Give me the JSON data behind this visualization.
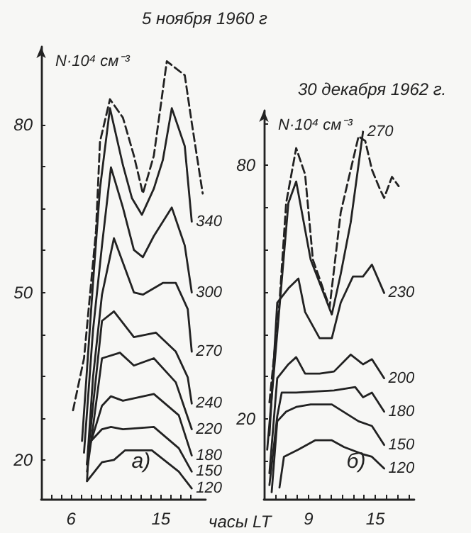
{
  "chart_data": [
    {
      "type": "line",
      "title": "5 ноября 1960 г",
      "ylabel": "N·10⁴ см⁻³",
      "xlabel": "часы LT",
      "annotations": [
        "а)"
      ],
      "marker": "none",
      "xlim": [
        3,
        19.5
      ],
      "ylim": [
        13,
        94
      ],
      "xticks": [
        {
          "value": 4,
          "label": null
        },
        {
          "value": 5,
          "label": null
        },
        6,
        {
          "value": 7,
          "label": null
        },
        {
          "value": 8,
          "label": null
        },
        {
          "value": 9,
          "label": null
        },
        {
          "value": 10,
          "label": null
        },
        {
          "value": 11,
          "label": null
        },
        {
          "value": 12,
          "label": null
        },
        {
          "value": 13,
          "label": null
        },
        {
          "value": 14,
          "label": null
        },
        15,
        {
          "value": 16,
          "label": null
        },
        {
          "value": 17,
          "label": null
        },
        {
          "value": 18,
          "label": null
        }
      ],
      "yticks": [
        20,
        {
          "value": 27.5,
          "label": null
        },
        {
          "value": 35,
          "label": null
        },
        {
          "value": 42.5,
          "label": null
        },
        50,
        {
          "value": 57.5,
          "label": null
        },
        {
          "value": 65,
          "label": null
        },
        {
          "value": 72.5,
          "label": null
        },
        80
      ],
      "series": [
        {
          "color": "#222222",
          "line_style": "dashed",
          "x": [
            6.2,
            7.3,
            8.5,
            8.9,
            9.9,
            11.2,
            12.3,
            13.2,
            14.3,
            15.6,
            17.4,
            18.1,
            19.2
          ],
          "values": [
            28.9,
            38.2,
            61,
            77,
            84.6,
            81.3,
            74.5,
            67.7,
            74.5,
            91.4,
            88.9,
            80.4,
            67.7
          ]
        },
        {
          "name": "340",
          "color": "#222222",
          "x": [
            7.1,
            8.2,
            8.9,
            9.9,
            11.2,
            12.1,
            13.1,
            14.3,
            15.2,
            16.1,
            17.4,
            18.1
          ],
          "values": [
            23.4,
            51.7,
            68.6,
            83,
            72.8,
            66.9,
            63.9,
            68.6,
            73.7,
            83,
            76.2,
            62.7
          ]
        },
        {
          "name": "300",
          "color": "#222222",
          "x": [
            7.3,
            8.2,
            9.1,
            10,
            11.2,
            12.3,
            13.2,
            14.3,
            16.1,
            17.4,
            18.1
          ],
          "values": [
            21.3,
            43.2,
            58.4,
            72.4,
            65.2,
            57.6,
            56.3,
            60.1,
            65.2,
            58.4,
            50
          ]
        },
        {
          "name": "270",
          "color": "#222222",
          "x": [
            7.6,
            8.2,
            9.1,
            10.3,
            12.3,
            13.2,
            15.2,
            16.5,
            17.7,
            18.1
          ],
          "values": [
            19.2,
            34.8,
            49.6,
            59.7,
            50,
            49.6,
            51.7,
            51.7,
            47,
            39.4
          ]
        },
        {
          "name": "240",
          "color": "#222222",
          "x": [
            7.6,
            8.2,
            9.1,
            10.3,
            12.3,
            14.5,
            16.5,
            17.7,
            18.1
          ],
          "values": [
            19.2,
            29.7,
            44.9,
            46.6,
            42,
            42.8,
            39.4,
            34.8,
            30.1
          ]
        },
        {
          "name": "220",
          "color": "#222222",
          "x": [
            7.6,
            8.2,
            9.1,
            10.9,
            12.3,
            14.3,
            16.5,
            18.1
          ],
          "values": [
            17.9,
            25.9,
            38.2,
            39.2,
            36.9,
            38.2,
            33.9,
            25.5
          ]
        },
        {
          "name": "180",
          "color": "#222222",
          "x": [
            7.8,
            9.1,
            10,
            11.2,
            14.3,
            16.8,
            18.1
          ],
          "values": [
            22.1,
            29.7,
            31.4,
            30.6,
            31.8,
            28,
            20.8
          ]
        },
        {
          "name": "150",
          "color": "#222222",
          "x": [
            7.6,
            7.8,
            9.1,
            10,
            11.2,
            14.3,
            16.8,
            18.1
          ],
          "values": [
            16.2,
            23,
            25.5,
            25.9,
            25.5,
            25.9,
            22.1,
            17.9
          ]
        },
        {
          "name": "120",
          "color": "#222222",
          "x": [
            7.6,
            9.1,
            10.3,
            11.4,
            14.1,
            16.8,
            18.1
          ],
          "values": [
            16.2,
            19.6,
            20,
            21.7,
            21.7,
            17.9,
            14.9
          ]
        }
      ]
    },
    {
      "type": "line",
      "title": "30 декабря 1962 г.",
      "ylabel": "N·10⁴ см⁻³",
      "annotations": [
        "б)"
      ],
      "marker": "none",
      "xlim": [
        5,
        18.5
      ],
      "ylim": [
        1,
        93
      ],
      "xticks": [
        {
          "value": 6,
          "label": null
        },
        {
          "value": 7,
          "label": null
        },
        {
          "value": 8,
          "label": null
        },
        9,
        {
          "value": 10,
          "label": null
        },
        {
          "value": 11,
          "label": null
        },
        {
          "value": 12,
          "label": null
        },
        {
          "value": 13,
          "label": null
        },
        {
          "value": 14,
          "label": null
        },
        15,
        {
          "value": 16,
          "label": null
        },
        {
          "value": 17,
          "label": null
        },
        {
          "value": 18,
          "label": null
        }
      ],
      "yticks": [
        {
          "value": 10,
          "label": null
        },
        20,
        {
          "value": 30,
          "label": null
        },
        {
          "value": 40,
          "label": null
        },
        {
          "value": 50,
          "label": null
        },
        {
          "value": 60,
          "label": null
        },
        {
          "value": 70,
          "label": null
        },
        80,
        {
          "value": 90,
          "label": null
        }
      ],
      "series": [
        {
          "color": "#222222",
          "line_style": "dashed",
          "x": [
            5.5,
            6.4,
            7,
            7.9,
            8.7,
            9.4,
            10.9,
            11.9,
            13.5,
            14.1,
            14.7,
            15.4,
            15.8,
            16.5,
            17.1
          ],
          "values": [
            23.9,
            47.5,
            71.1,
            84.1,
            77.9,
            57.7,
            46.4,
            68.9,
            86.9,
            85.8,
            79,
            74.5,
            72.3,
            77.3,
            75.1
          ]
        },
        {
          "name": "270",
          "color": "#222222",
          "x": [
            5.3,
            6.4,
            7.2,
            7.9,
            9.2,
            11.1,
            11.9,
            12.8,
            13.9
          ],
          "values": [
            12.7,
            46.4,
            71.1,
            76.2,
            57.7,
            44.7,
            54.3,
            66.6,
            88
          ]
        },
        {
          "name": "230",
          "color": "#222222",
          "x": [
            5.5,
            6.2,
            7.2,
            8.1,
            8.7,
            10,
            11.1,
            11.9,
            13,
            13.9,
            14.7,
            15.8
          ],
          "values": [
            16.1,
            47.5,
            50.9,
            53.2,
            45.3,
            39.1,
            39.1,
            47.5,
            53.7,
            53.7,
            56.5,
            49.8
          ]
        },
        {
          "name": "200",
          "color": "#222222",
          "x": [
            5.5,
            6.2,
            7.2,
            7.9,
            8.7,
            10,
            11.3,
            12.8,
            13.9,
            14.7,
            15.8
          ],
          "values": [
            7.1,
            29.6,
            32.9,
            34.6,
            30.7,
            30.7,
            31.2,
            35.2,
            32.9,
            34.1,
            29.6
          ]
        },
        {
          "name": "180",
          "color": "#222222",
          "x": [
            5.5,
            6.2,
            6.6,
            7.9,
            11.3,
            13.2,
            13.9,
            14.7,
            15.8
          ],
          "values": [
            4.3,
            20.6,
            26.2,
            26.2,
            26.7,
            27.5,
            25.1,
            26.2,
            21.7
          ]
        },
        {
          "name": "150",
          "color": "#222222",
          "x": [
            5.7,
            6.2,
            7,
            7.9,
            9.2,
            11.1,
            13.5,
            14.7,
            15.8
          ],
          "values": [
            2.6,
            19.4,
            21.7,
            22.8,
            23.4,
            23.4,
            19.4,
            18.3,
            13.8
          ]
        },
        {
          "name": "120",
          "color": "#222222",
          "x": [
            6.4,
            6.8,
            8.1,
            9.6,
            11.1,
            12.2,
            13.9,
            14.7,
            15.8
          ],
          "values": [
            3.7,
            11,
            12.7,
            14.9,
            14.9,
            13.3,
            11.6,
            11,
            8.2
          ]
        }
      ]
    }
  ]
}
